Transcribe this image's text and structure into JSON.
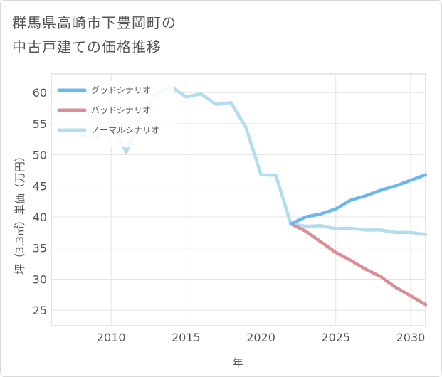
{
  "title": {
    "line1": "群馬県高崎市下豊岡町の",
    "line2": "中古戸建ての価格推移"
  },
  "chart_data": {
    "type": "line",
    "title": "群馬県高崎市下豊岡町の中古戸建ての価格推移",
    "xlabel": "年",
    "ylabel": "坪（3.3㎡）単価（万円）",
    "xlim": [
      2006,
      2031
    ],
    "ylim": [
      22.5,
      63
    ],
    "x_ticks": [
      2010,
      2015,
      2020,
      2025,
      2030
    ],
    "y_ticks": [
      25,
      30,
      35,
      40,
      45,
      50,
      55,
      60
    ],
    "grid": true,
    "legend_position": "top-left",
    "series": [
      {
        "name": "グッドシナリオ",
        "color": "#6cb8ee",
        "x": [
          2022,
          2023,
          2024,
          2025,
          2026,
          2027,
          2028,
          2029,
          2030,
          2031
        ],
        "values": [
          38.9,
          40.0,
          40.5,
          41.3,
          42.7,
          43.4,
          44.3,
          45.0,
          45.9,
          46.8
        ]
      },
      {
        "name": "バッドシナリオ",
        "color": "#db8f95",
        "x": [
          2022,
          2023,
          2024,
          2025,
          2026,
          2027,
          2028,
          2029,
          2030,
          2031
        ],
        "values": [
          38.9,
          37.7,
          36.0,
          34.3,
          33.0,
          31.6,
          30.4,
          28.7,
          27.3,
          25.9
        ]
      },
      {
        "name": "ノーマルシナリオ",
        "color": "#b3dcee",
        "x": [
          2008,
          2009,
          2010,
          2011,
          2012,
          2013,
          2014,
          2015,
          2016,
          2017,
          2018,
          2019,
          2020,
          2021,
          2022,
          2023,
          2024,
          2025,
          2026,
          2027,
          2028,
          2029,
          2030,
          2031
        ],
        "values": [
          53.0,
          52.7,
          55.8,
          50.4,
          56.5,
          59.9,
          61.0,
          59.3,
          59.8,
          58.1,
          58.4,
          54.4,
          46.8,
          46.7,
          38.9,
          38.5,
          38.6,
          38.1,
          38.2,
          37.9,
          37.9,
          37.5,
          37.5,
          37.2
        ]
      }
    ]
  }
}
